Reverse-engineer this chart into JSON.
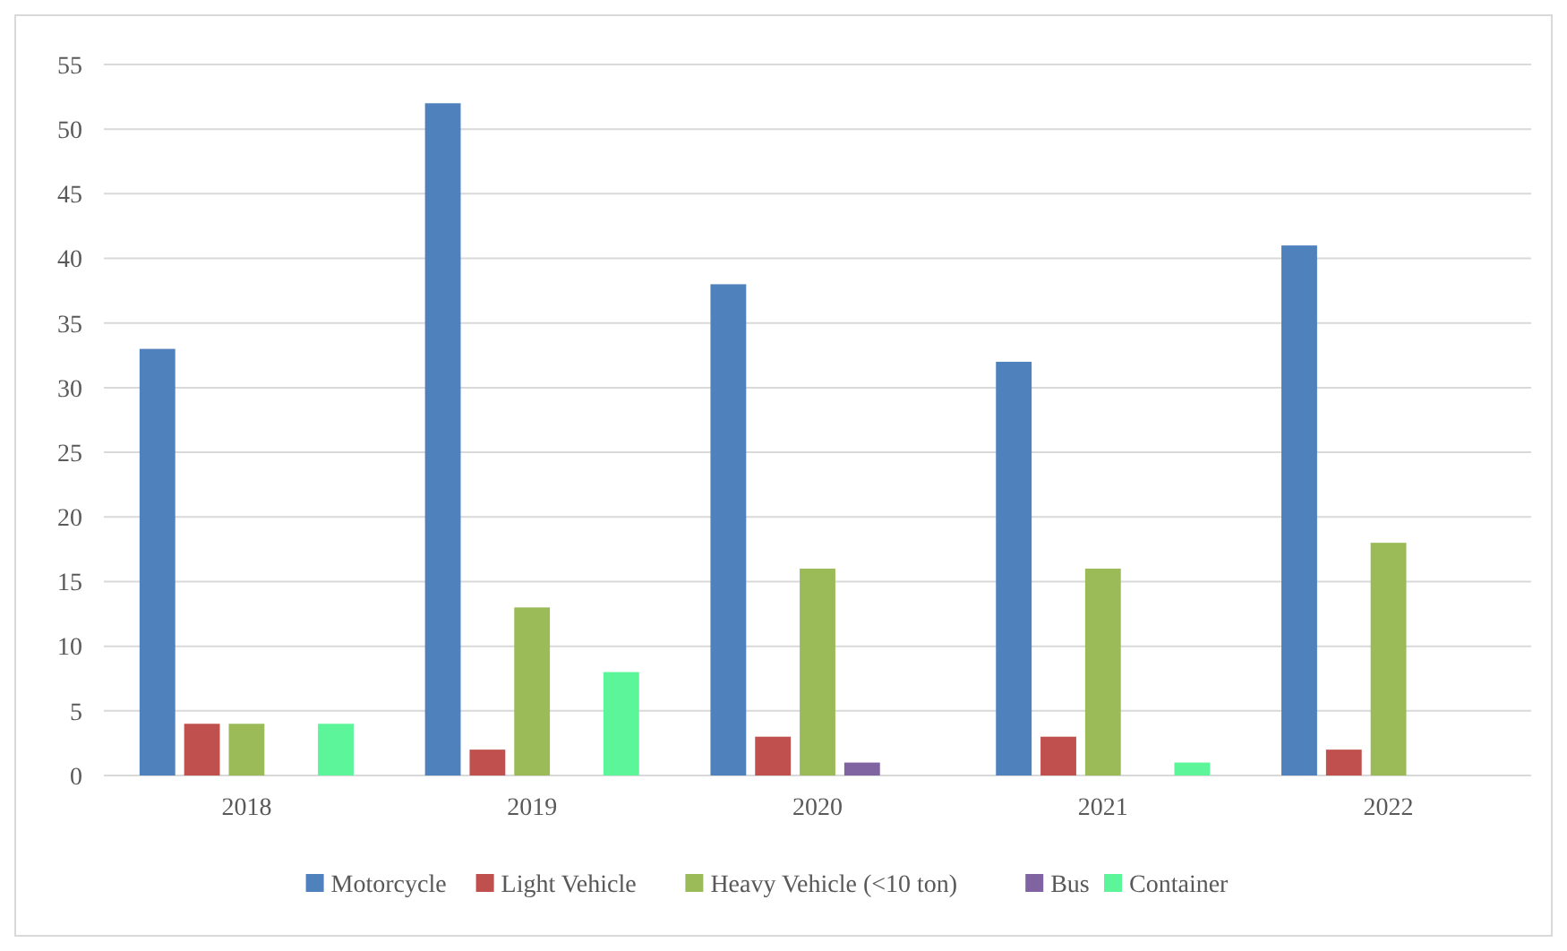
{
  "chart_data": {
    "type": "bar",
    "categories": [
      "2018",
      "2019",
      "2020",
      "2021",
      "2022"
    ],
    "series": [
      {
        "name": "Motorcycle",
        "color": "#4f81bd",
        "values": [
          33,
          52,
          38,
          32,
          41
        ]
      },
      {
        "name": "Light Vehicle",
        "color": "#c0504d",
        "values": [
          4,
          2,
          3,
          3,
          2
        ]
      },
      {
        "name": "Heavy Vehicle (<10 ton)",
        "color": "#9bbb59",
        "values": [
          4,
          13,
          16,
          16,
          18
        ]
      },
      {
        "name": "Bus",
        "color": "#8064a2",
        "values": [
          0,
          0,
          1,
          0,
          0
        ]
      },
      {
        "name": "Container",
        "color": "#5cf59a",
        "values": [
          4,
          8,
          0,
          1,
          0
        ]
      }
    ],
    "ylim": [
      0,
      55
    ],
    "yticks": [
      0,
      5,
      10,
      15,
      20,
      25,
      30,
      35,
      40,
      45,
      50,
      55
    ],
    "grid": "y",
    "legend": "bottom"
  }
}
